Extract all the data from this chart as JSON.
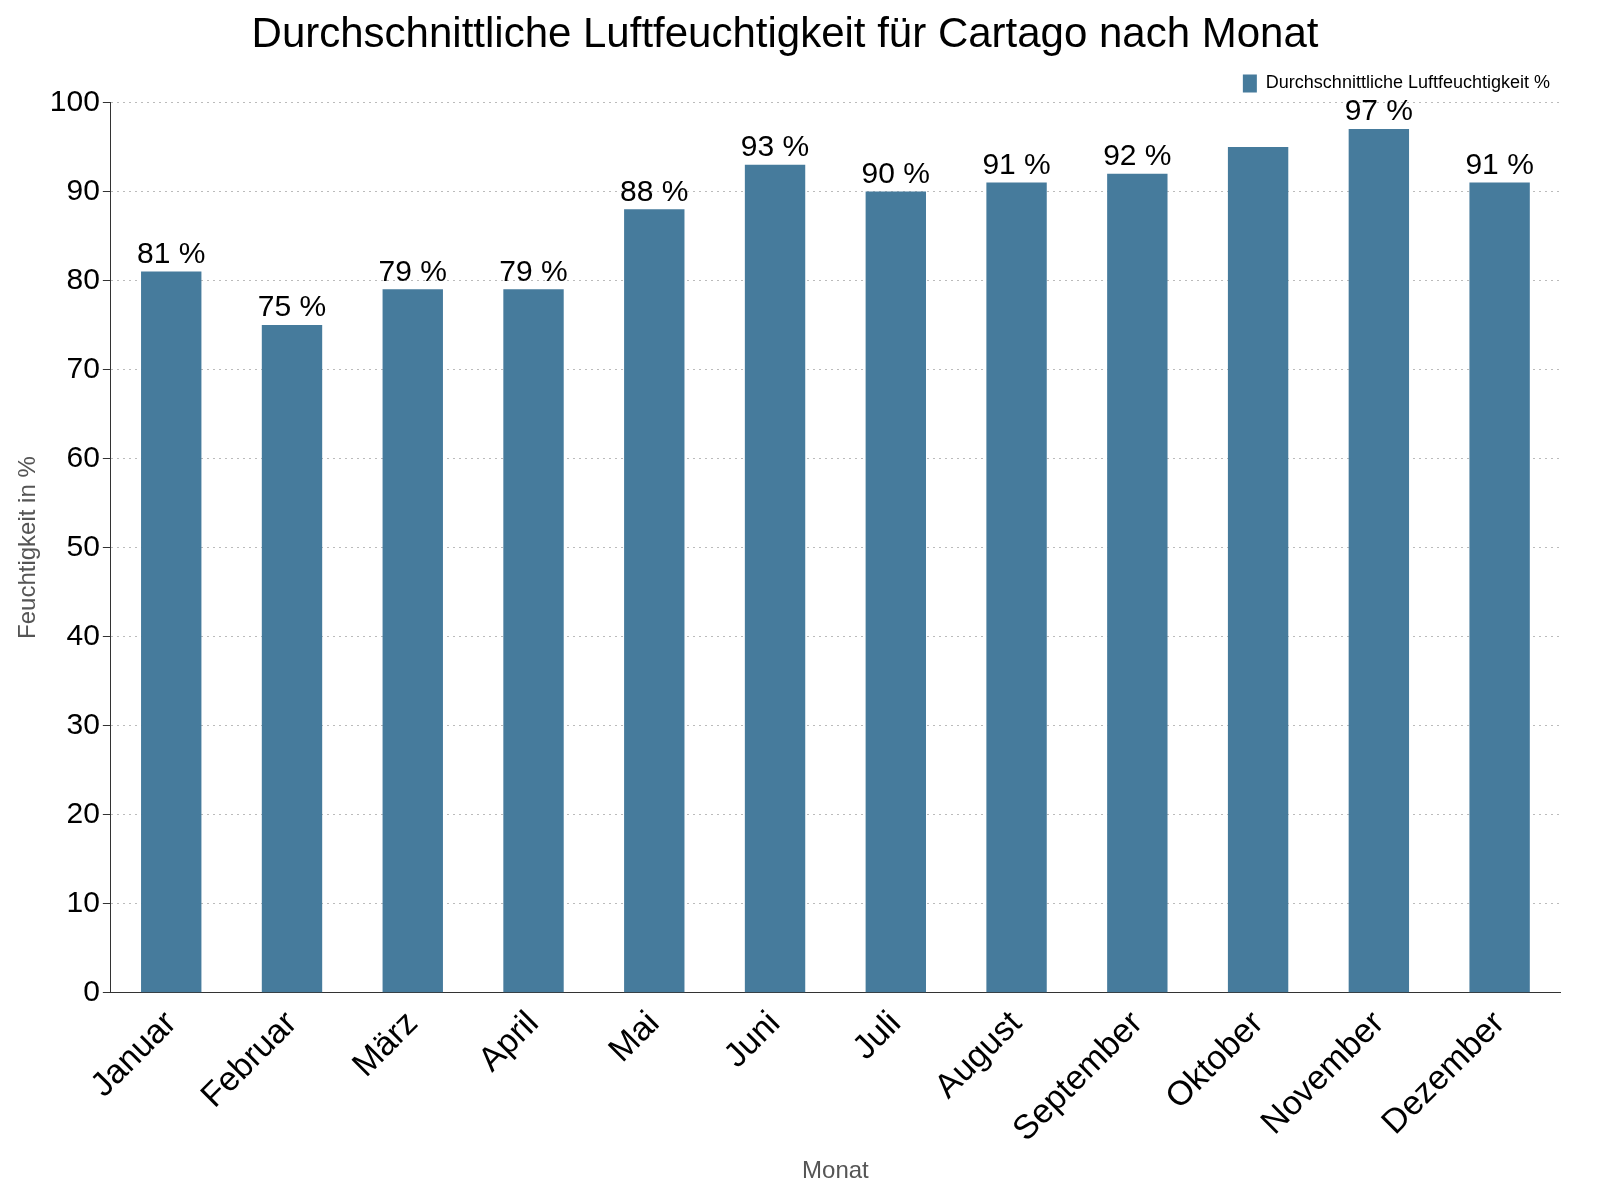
{
  "chart_data": {
    "type": "bar",
    "title": "Durchschnittliche Luftfeuchtigkeit für Cartago nach Monat",
    "xlabel": "Monat",
    "ylabel": "Feuchtigkeit in %",
    "categories": [
      "Januar",
      "Februar",
      "März",
      "April",
      "Mai",
      "Juni",
      "Juli",
      "August",
      "September",
      "Oktober",
      "November",
      "Dezember"
    ],
    "series": [
      {
        "name": "Durchschnittliche Luftfeuchtigkeit %",
        "color": "#467b9c",
        "values": [
          81,
          75,
          79,
          79,
          88,
          93,
          90,
          91,
          92,
          95,
          97,
          91
        ],
        "value_labels": [
          "81 %",
          "75 %",
          "79 %",
          "79 %",
          "88 %",
          "93 %",
          "90 %",
          "91 %",
          "92 %",
          null,
          "97 %",
          "91 %"
        ]
      }
    ],
    "ylim": [
      0,
      100
    ],
    "yticks": [
      0,
      10,
      20,
      30,
      40,
      50,
      60,
      70,
      80,
      90,
      100
    ],
    "grid": "y",
    "legend": "top right"
  }
}
